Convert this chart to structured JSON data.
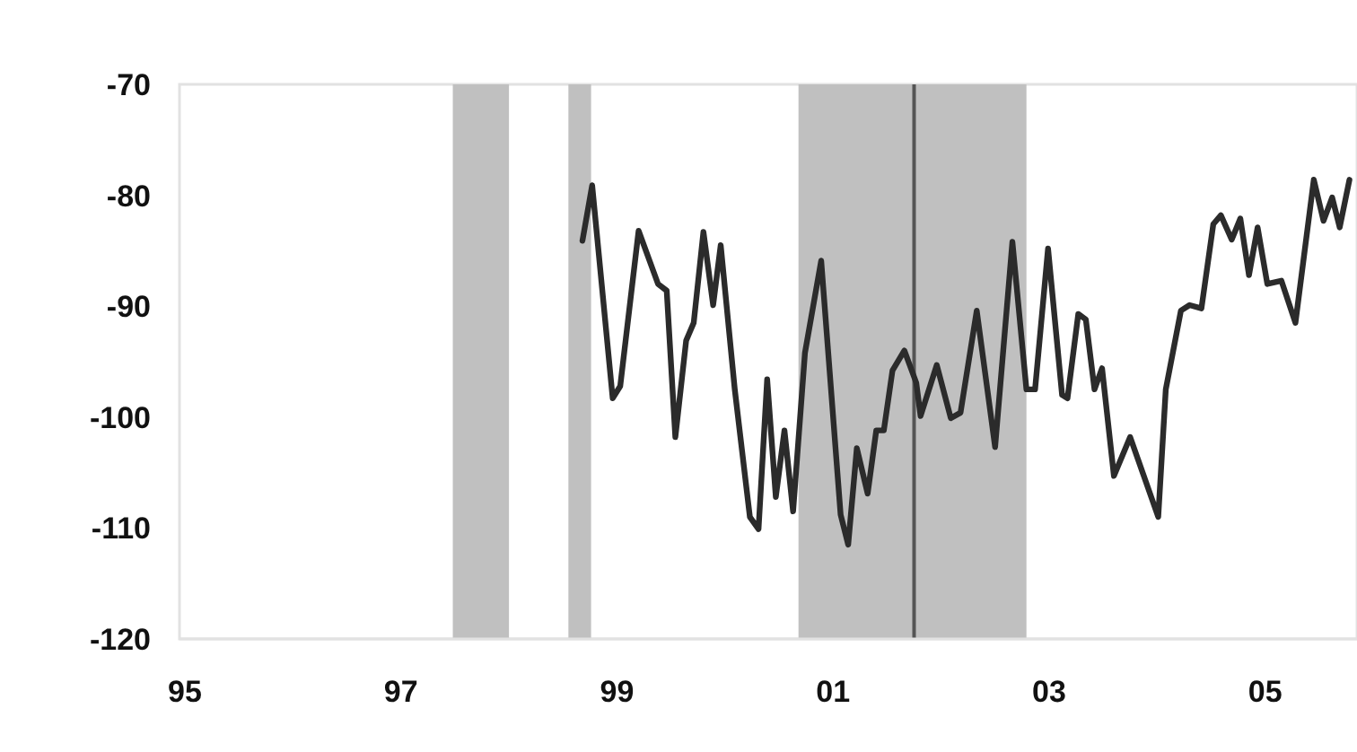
{
  "chart_data": {
    "type": "line",
    "xlim": [
      1994.95,
      2005.85
    ],
    "ylim": [
      -120,
      -70
    ],
    "xticks": [
      {
        "value": 1995,
        "label": "95"
      },
      {
        "value": 1997,
        "label": "97"
      },
      {
        "value": 1999,
        "label": "99"
      },
      {
        "value": 2001,
        "label": "01"
      },
      {
        "value": 2003,
        "label": "03"
      },
      {
        "value": 2005,
        "label": "05"
      }
    ],
    "yticks": [
      -120,
      -110,
      -100,
      -90,
      -80,
      -70
    ],
    "grid": false,
    "line_style": "solid",
    "bands": [
      {
        "axis": "x",
        "from": 1997.48,
        "to": 1998.0,
        "color": "#c0c0c0"
      },
      {
        "axis": "x",
        "from": 1998.55,
        "to": 1998.76,
        "color": "#c0c0c0"
      },
      {
        "axis": "x",
        "from": 2000.68,
        "to": 2002.79,
        "color": "#c0c0c0"
      }
    ],
    "ref_lines": [
      {
        "axis": "x",
        "value": 2001.75,
        "color": "#555555"
      }
    ],
    "series": [
      {
        "color": "#2b2b2b",
        "x": [
          1998.68,
          1998.77,
          1998.96,
          1999.03,
          1999.2,
          1999.38,
          1999.46,
          1999.54,
          1999.64,
          1999.71,
          1999.8,
          1999.89,
          1999.96,
          2000.09,
          2000.23,
          2000.31,
          2000.39,
          2000.47,
          2000.55,
          2000.63,
          2000.74,
          2000.89,
          2001.07,
          2001.14,
          2001.22,
          2001.32,
          2001.4,
          2001.47,
          2001.55,
          2001.66,
          2001.77,
          2001.81,
          2001.96,
          2002.09,
          2002.18,
          2002.33,
          2002.5,
          2002.66,
          2002.79,
          2002.87,
          2002.99,
          2003.12,
          2003.17,
          2003.27,
          2003.34,
          2003.42,
          2003.49,
          2003.6,
          2003.75,
          2004.01,
          2004.08,
          2004.22,
          2004.3,
          2004.41,
          2004.52,
          2004.59,
          2004.69,
          2004.77,
          2004.85,
          2004.93,
          2005.02,
          2005.15,
          2005.28,
          2005.45,
          2005.54,
          2005.62,
          2005.69,
          2005.78
        ],
        "values": [
          -84.1,
          -79.1,
          -98.3,
          -97.2,
          -83.2,
          -88,
          -88.6,
          -101.8,
          -93.1,
          -91.5,
          -83.3,
          -89.9,
          -84.5,
          -97.5,
          -109,
          -110.1,
          -96.6,
          -107.2,
          -101.2,
          -108.5,
          -94.2,
          -85.9,
          -108.8,
          -111.5,
          -102.8,
          -106.9,
          -101.2,
          -101.2,
          -95.8,
          -94,
          -96.9,
          -99.9,
          -95.3,
          -100.1,
          -99.6,
          -90.4,
          -102.7,
          -84.2,
          -97.5,
          -97.5,
          -84.8,
          -98,
          -98.3,
          -90.7,
          -91.2,
          -97.5,
          -95.6,
          -105.3,
          -101.8,
          -109,
          -97.5,
          -90.4,
          -89.9,
          -90.2,
          -82.6,
          -81.8,
          -84,
          -82.1,
          -87.2,
          -82.9,
          -88,
          -87.7,
          -91.5,
          -78.6,
          -82.3,
          -80.2,
          -82.9,
          -78.6
        ]
      }
    ]
  }
}
